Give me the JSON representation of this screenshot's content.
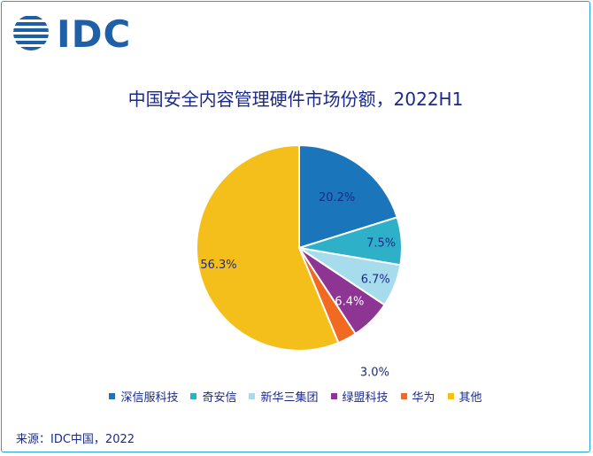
{
  "logo": {
    "text": "IDC",
    "color": "#1f5fa8"
  },
  "source": "来源：IDC中国，2022",
  "chart_data": {
    "type": "pie",
    "title": "中国安全内容管理硬件市场份额，2022H1",
    "slices": [
      {
        "name": "深信服科技",
        "value": 20.2,
        "label": "20.2%",
        "color": "#1b75bb"
      },
      {
        "name": "奇安信",
        "value": 7.5,
        "label": "7.5%",
        "color": "#2fb0c9"
      },
      {
        "name": "新华三集团",
        "value": 6.7,
        "label": "6.7%",
        "color": "#a6dceb"
      },
      {
        "name": "绿盟科技",
        "value": 6.4,
        "label": "6.4%",
        "color": "#8e3594"
      },
      {
        "name": "华为",
        "value": 3.0,
        "label": "3.0%",
        "color": "#f26a21"
      },
      {
        "name": "其他",
        "value": 56.3,
        "label": "56.3%",
        "color": "#f4bf1a"
      }
    ],
    "legend_position": "bottom"
  }
}
